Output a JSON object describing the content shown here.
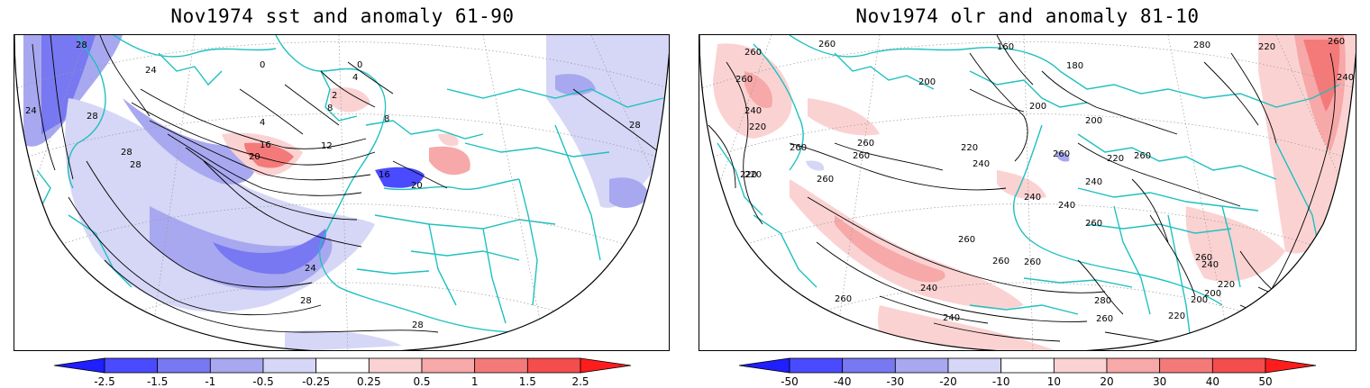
{
  "panels": [
    {
      "title": "Nov1974 sst and anomaly 61-90",
      "colorbar": {
        "labels": [
          "-2.5",
          "-1.5",
          "-1",
          "-0.5",
          "-0.25",
          "0.25",
          "0.5",
          "1",
          "1.5",
          "2.5"
        ],
        "colors": [
          "#1f1fff",
          "#4a4aff",
          "#7878f2",
          "#a8a8f0",
          "#d6d6f6",
          "#ffffff",
          "#fbd2d2",
          "#f7a8a8",
          "#f47a7a",
          "#f54c4c",
          "#ff1c1c"
        ]
      },
      "contour_labels": [
        "28",
        "24",
        "24",
        "28",
        "28",
        "28",
        "0",
        "0",
        "4",
        "2",
        "8",
        "4",
        "12",
        "16",
        "20",
        "16",
        "20",
        "24",
        "28",
        "28",
        "8",
        "28"
      ]
    },
    {
      "title": "Nov1974 olr and anomaly 81-10",
      "colorbar": {
        "labels": [
          "-50",
          "-40",
          "-30",
          "-20",
          "-10",
          "10",
          "20",
          "30",
          "40",
          "50"
        ],
        "colors": [
          "#1f1fff",
          "#4a4aff",
          "#7878f2",
          "#a8a8f0",
          "#d6d6f6",
          "#ffffff",
          "#fbd2d2",
          "#f7a8a8",
          "#f47a7a",
          "#f54c4c",
          "#ff1c1c"
        ]
      },
      "contour_labels": [
        "260",
        "260",
        "260",
        "240",
        "220",
        "220",
        "260",
        "260",
        "260",
        "200",
        "160",
        "180",
        "200",
        "220",
        "200",
        "220",
        "240",
        "220",
        "240",
        "260",
        "240",
        "260",
        "260",
        "240",
        "260",
        "220",
        "280",
        "260",
        "260",
        "280",
        "220",
        "200",
        "240",
        "260",
        "260",
        "220",
        "240",
        "240",
        "260",
        "260",
        "200",
        "260",
        "240"
      ]
    }
  ]
}
